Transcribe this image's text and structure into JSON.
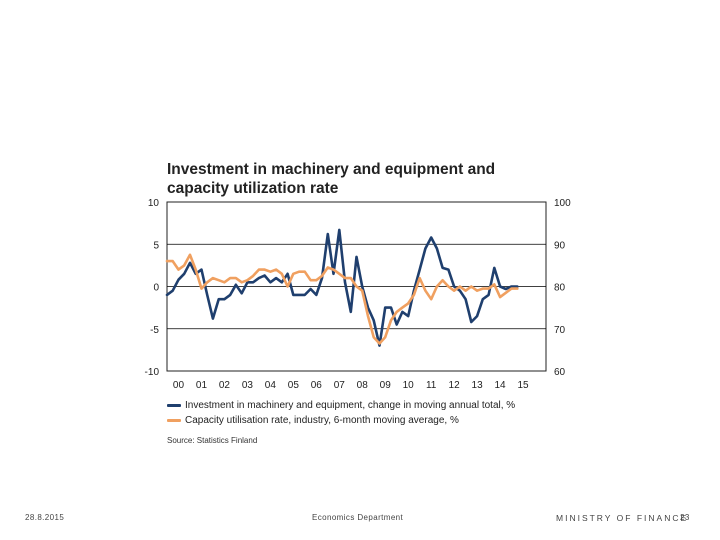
{
  "slide": {
    "footer_date": "28.8.2015",
    "footer_department": "Economics Department",
    "footer_org": "MINISTRY OF FINANCE",
    "page_number": "23"
  },
  "colors": {
    "series1": "#1f3f6e",
    "series2": "#f0a060",
    "gridline": "#000000"
  },
  "chart_data": {
    "type": "line",
    "title": "Investment in machinery and equipment and capacity utilization rate",
    "source": "Source: Statistics Finland",
    "x_ticks": [
      "00",
      "01",
      "02",
      "03",
      "04",
      "05",
      "06",
      "07",
      "08",
      "09",
      "10",
      "11",
      "12",
      "13",
      "14",
      "15"
    ],
    "xlim": [
      2000,
      2016.5
    ],
    "y_left": {
      "ticks": [
        "10",
        "5",
        "0",
        "-5",
        "-10"
      ],
      "lim": [
        -10,
        10
      ],
      "gridlines": [
        5,
        0,
        -5
      ]
    },
    "y_right": {
      "ticks": [
        "100",
        "90",
        "80",
        "70",
        "60"
      ],
      "lim": [
        60,
        100
      ]
    },
    "series": [
      {
        "name": "Investment in machinery and equipment, change in moving annual total, %",
        "axis": "left",
        "x": [
          2000.0,
          2000.25,
          2000.5,
          2000.75,
          2001.0,
          2001.25,
          2001.5,
          2001.75,
          2002.0,
          2002.25,
          2002.5,
          2002.75,
          2003.0,
          2003.25,
          2003.5,
          2003.75,
          2004.0,
          2004.25,
          2004.5,
          2004.75,
          2005.0,
          2005.25,
          2005.5,
          2005.75,
          2006.0,
          2006.25,
          2006.5,
          2006.75,
          2007.0,
          2007.25,
          2007.5,
          2007.75,
          2008.0,
          2008.25,
          2008.5,
          2008.75,
          2009.0,
          2009.25,
          2009.5,
          2009.75,
          2010.0,
          2010.25,
          2010.5,
          2010.75,
          2011.0,
          2011.25,
          2011.5,
          2011.75,
          2012.0,
          2012.25,
          2012.5,
          2012.75,
          2013.0,
          2013.25,
          2013.5,
          2013.75,
          2014.0,
          2014.25,
          2014.5,
          2014.75,
          2015.0,
          2015.25
        ],
        "values": [
          -1.0,
          -0.5,
          0.8,
          1.5,
          2.8,
          1.5,
          2.0,
          -1.0,
          -3.8,
          -1.5,
          -1.5,
          -1.0,
          0.2,
          -0.8,
          0.5,
          0.5,
          1.0,
          1.3,
          0.5,
          1.0,
          0.5,
          1.5,
          -1.0,
          -1.0,
          -1.0,
          -0.3,
          -1.0,
          1.0,
          6.2,
          1.5,
          6.7,
          0.5,
          -3.0,
          3.5,
          0.0,
          -2.5,
          -4.0,
          -7.0,
          -2.5,
          -2.5,
          -4.5,
          -3.0,
          -3.5,
          -0.5,
          2.0,
          4.5,
          5.8,
          4.5,
          2.2,
          2.0,
          0.0,
          -0.5,
          -1.5,
          -4.2,
          -3.5,
          -1.5,
          -1.0,
          2.2,
          0.0,
          -0.3,
          0.0,
          0.0
        ]
      },
      {
        "name": "Capacity utilisation rate, industry, 6-month moving average, %",
        "axis": "right",
        "x": [
          2000.0,
          2000.25,
          2000.5,
          2000.75,
          2001.0,
          2001.25,
          2001.5,
          2001.75,
          2002.0,
          2002.25,
          2002.5,
          2002.75,
          2003.0,
          2003.25,
          2003.5,
          2003.75,
          2004.0,
          2004.25,
          2004.5,
          2004.75,
          2005.0,
          2005.25,
          2005.5,
          2005.75,
          2006.0,
          2006.25,
          2006.5,
          2006.75,
          2007.0,
          2007.25,
          2007.5,
          2007.75,
          2008.0,
          2008.25,
          2008.5,
          2008.75,
          2009.0,
          2009.25,
          2009.5,
          2009.75,
          2010.0,
          2010.25,
          2010.5,
          2010.75,
          2011.0,
          2011.25,
          2011.5,
          2011.75,
          2012.0,
          2012.25,
          2012.5,
          2012.75,
          2013.0,
          2013.25,
          2013.5,
          2013.75,
          2014.0,
          2014.25,
          2014.5,
          2014.75,
          2015.0,
          2015.25
        ],
        "values": [
          86.0,
          86.0,
          84.0,
          85.0,
          87.5,
          84.0,
          79.5,
          81.0,
          82.0,
          81.5,
          81.0,
          82.0,
          82.0,
          81.0,
          81.5,
          82.5,
          84.0,
          84.0,
          83.5,
          84.0,
          83.0,
          80.0,
          83.0,
          83.5,
          83.5,
          81.5,
          81.5,
          82.5,
          84.5,
          84.0,
          83.0,
          82.0,
          82.0,
          80.0,
          79.0,
          73.0,
          68.0,
          66.5,
          68.0,
          72.0,
          74.0,
          75.0,
          76.0,
          78.0,
          82.0,
          79.0,
          77.0,
          80.0,
          81.5,
          80.0,
          79.0,
          80.0,
          79.0,
          80.0,
          79.0,
          79.5,
          79.5,
          80.5,
          77.5,
          78.5,
          79.5,
          79.5
        ]
      }
    ]
  }
}
